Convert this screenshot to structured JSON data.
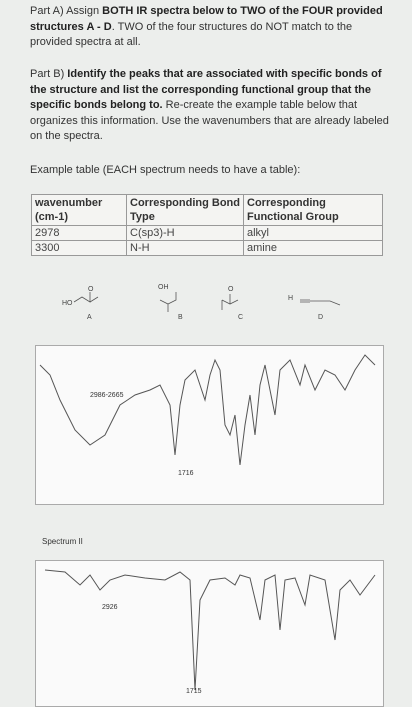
{
  "question": {
    "part_a": [
      "Part A) Assign ",
      "BOTH IR spectra below to TWO of the FOUR provided structures A - D",
      ". TWO of the four structures do NOT match to the provided spectra at all."
    ],
    "part_b": [
      "Part B) ",
      "Identify the peaks that are associated with specific bonds of the structure and list the corresponding functional group that the specific bonds belong to.",
      " Re-create the example table below that organizes this information. Use the wavenumbers that are already labeled on the spectra."
    ],
    "example": "Example table (EACH spectrum needs to have a table):"
  },
  "table": {
    "headers": [
      "wavenumber (cm-1)",
      "Corresponding Bond Type",
      "Corresponding Functional Group"
    ],
    "rows": [
      [
        "2978",
        "C(sp3)-H",
        "alkyl"
      ],
      [
        "3300",
        "N-H",
        "amine"
      ]
    ]
  },
  "structures": [
    {
      "label": "A",
      "atoms": [
        "HO",
        "O"
      ]
    },
    {
      "label": "B",
      "atoms": [
        "OH"
      ]
    },
    {
      "label": "C",
      "atoms": [
        "O"
      ]
    },
    {
      "label": "D",
      "atoms": [
        "H"
      ]
    }
  ],
  "spectra": [
    {
      "annotations": [
        "2986-2665",
        "1716"
      ]
    },
    {
      "name": "Spectrum II",
      "annotations": [
        "2926",
        "1715"
      ]
    }
  ]
}
